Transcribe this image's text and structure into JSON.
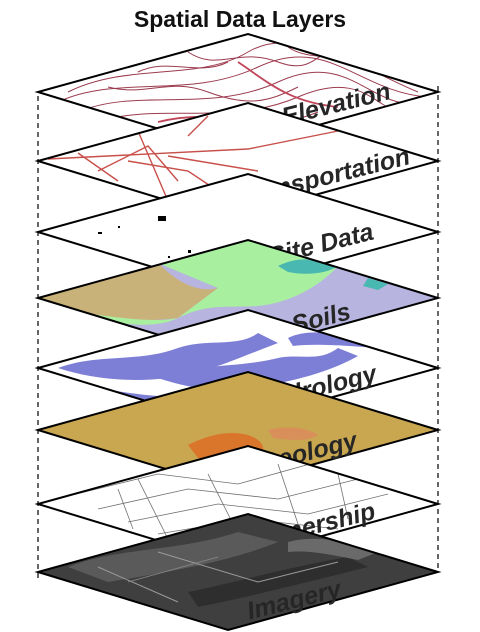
{
  "diagram": {
    "title": "Spatial Data Layers",
    "layers": [
      {
        "label": "Elevation",
        "fill": "#ffffff",
        "detail": "contour-lines",
        "detail_color": "#9b3b4e"
      },
      {
        "label": "Transportation",
        "fill": "#ffffff",
        "detail": "road-network",
        "detail_color": "#c8504a"
      },
      {
        "label": "Site Data",
        "fill": "#ffffff",
        "detail": "site-points",
        "detail_color": "#000000"
      },
      {
        "label": "Soils",
        "fill": "#b7b4df",
        "detail": "soil-zones",
        "detail_color": "#a8f0a0"
      },
      {
        "label": "Hydrology",
        "fill": "#ffffff",
        "detail": "water-bodies",
        "detail_color": "#7d7fd6"
      },
      {
        "label": "Geology",
        "fill": "#c9a650",
        "detail": "geologic-units",
        "detail_color": "#d9762c"
      },
      {
        "label": "Ownership",
        "fill": "#ffffff",
        "detail": "parcel-boundaries",
        "detail_color": "#6f6f6f"
      },
      {
        "label": "Imagery",
        "fill": "#3f3f3f",
        "detail": "aerial-photo",
        "detail_color": "#8a8a8a"
      }
    ]
  }
}
